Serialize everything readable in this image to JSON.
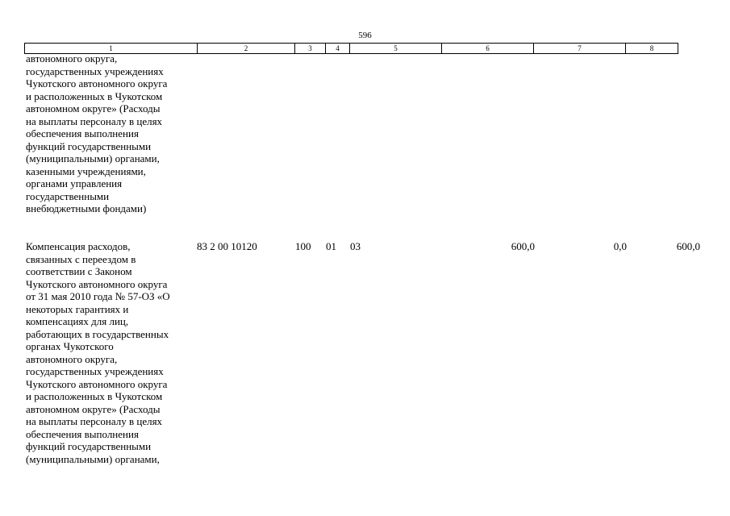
{
  "page_number": "596",
  "header_columns": [
    "1",
    "2",
    "3",
    "4",
    "5",
    "6",
    "7",
    "8"
  ],
  "continued_text": "автономного округа,\nгосударственных учреждениях\nЧукотского автономного округа\nи расположенных в Чукотском\nавтономном округе» (Расходы\nна выплаты персоналу в целях\nобеспечения выполнения\nфункций государственными\n(муниципальными) органами,\nказенными учреждениями,\nорганами управления\nгосударственными\nвнебюджетными фондами)",
  "row": {
    "description": "Компенсация расходов,\nсвязанных с переездом в\nсоответствии с Законом\nЧукотского автономного округа\nот 31 мая 2010 года № 57-ОЗ «О\nнекоторых гарантиях и\nкомпенсациях для лиц,\nработающих в государственных\nорганах Чукотского\nавтономного округа,\nгосударственных учреждениях\nЧукотского автономного округа\nи расположенных в Чукотском\nавтономном округе» (Расходы\nна выплаты персоналу в целях\nобеспечения выполнения\nфункций государственными\n(муниципальными) органами,",
    "code": "83 2 00 10120",
    "col3": "100",
    "col4": "01",
    "col5": "03",
    "col6": "600,0",
    "col7": "0,0",
    "col8": "600,0"
  }
}
